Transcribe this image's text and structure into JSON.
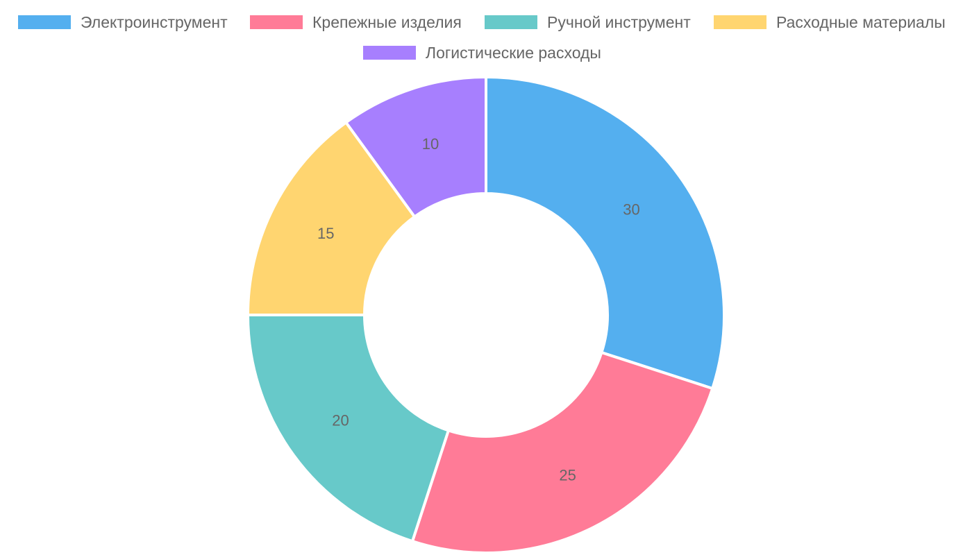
{
  "chart_data": {
    "type": "doughnut",
    "legend_position": "top",
    "data_labels_shown": true,
    "slices": [
      {
        "label": "Электроинструмент",
        "value": 30,
        "color": "#54afef"
      },
      {
        "label": "Крепежные изделия",
        "value": 25,
        "color": "#ff7b97"
      },
      {
        "label": "Ручной инструмент",
        "value": 20,
        "color": "#67c9c9"
      },
      {
        "label": "Расходные материалы",
        "value": 15,
        "color": "#ffd570"
      },
      {
        "label": "Логистические расходы",
        "value": 10,
        "color": "#a77ffe"
      }
    ]
  }
}
